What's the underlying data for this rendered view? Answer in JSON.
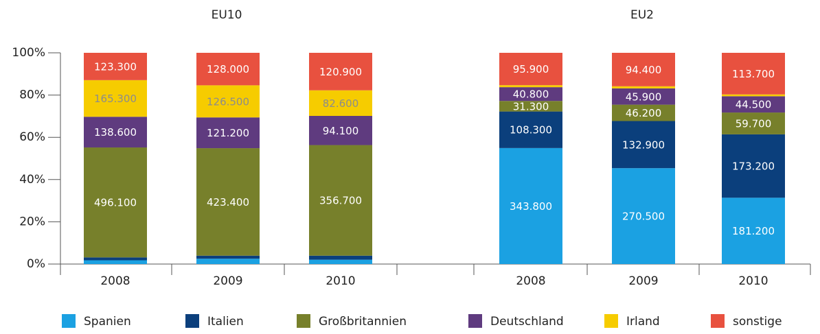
{
  "chart_data": {
    "type": "bar",
    "stacked": "percent",
    "ylim": [
      0,
      100
    ],
    "yticks": [
      {
        "value": 0,
        "label": "0%"
      },
      {
        "value": 20,
        "label": "20%"
      },
      {
        "value": 40,
        "label": "40%"
      },
      {
        "value": 60,
        "label": "60%"
      },
      {
        "value": 80,
        "label": "80%"
      },
      {
        "value": 100,
        "label": "100%"
      }
    ],
    "grid": false,
    "legend_position": "bottom",
    "series": [
      {
        "name": "Spanien",
        "color": "#1ba1e2"
      },
      {
        "name": "Italien",
        "color": "#0b3f7c"
      },
      {
        "name": "Großbritannien",
        "color": "#77802b"
      },
      {
        "name": "Deutschland",
        "color": "#5f3b7f"
      },
      {
        "name": "Irland",
        "color": "#f6cc00"
      },
      {
        "name": "sonstige",
        "color": "#e8513f"
      }
    ],
    "panels": [
      {
        "title": "EU10",
        "categories": [
          "2008",
          "2009",
          "2010"
        ],
        "series": [
          {
            "values": [
              17000,
              21000,
              14000
            ],
            "value_labels": [
              null,
              null,
              null
            ]
          },
          {
            "values": [
              13000,
              12000,
              13000
            ],
            "value_labels": [
              null,
              null,
              null
            ]
          },
          {
            "values": [
              496100,
              423400,
              356700
            ],
            "value_labels": [
              "496.100",
              "423.400",
              "356.700"
            ]
          },
          {
            "values": [
              138600,
              121200,
              94100
            ],
            "value_labels": [
              "138.600",
              "121.200",
              "94.100"
            ]
          },
          {
            "values": [
              165300,
              126500,
              82600
            ],
            "value_labels": [
              "165.300",
              "126.500",
              "82.600"
            ]
          },
          {
            "values": [
              123300,
              128000,
              120900
            ],
            "value_labels": [
              "123.300",
              "128.000",
              "120.900"
            ]
          }
        ]
      },
      {
        "title": "EU2",
        "categories": [
          "2008",
          "2009",
          "2010"
        ],
        "series": [
          {
            "values": [
              343800,
              270500,
              181200
            ],
            "value_labels": [
              "343.800",
              "270.500",
              "181.200"
            ]
          },
          {
            "values": [
              108300,
              132900,
              173200
            ],
            "value_labels": [
              "108.300",
              "132.900",
              "173.200"
            ]
          },
          {
            "values": [
              31300,
              46200,
              59700
            ],
            "value_labels": [
              "31.300",
              "46.200",
              "59.700"
            ]
          },
          {
            "values": [
              40800,
              45900,
              44500
            ],
            "value_labels": [
              "40.800",
              "45.900",
              "44.500"
            ]
          },
          {
            "values": [
              6000,
              6000,
              5000
            ],
            "value_labels": [
              null,
              null,
              null
            ]
          },
          {
            "values": [
              95900,
              94400,
              113700
            ],
            "value_labels": [
              "95.900",
              "94.400",
              "113.700"
            ]
          }
        ]
      }
    ]
  }
}
